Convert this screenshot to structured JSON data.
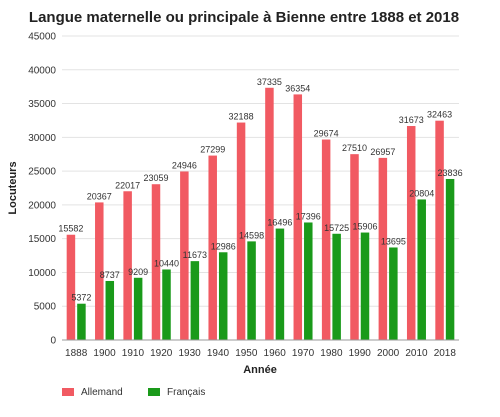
{
  "chart_data": {
    "type": "bar",
    "title": "Langue maternelle ou principale à Bienne entre 1888 et 2018",
    "xlabel": "Année",
    "ylabel": "Locuteurs",
    "ylim": [
      0,
      45000
    ],
    "yticks": [
      0,
      5000,
      10000,
      15000,
      20000,
      25000,
      30000,
      35000,
      40000,
      45000
    ],
    "grid": true,
    "legend": "bottom-left",
    "categories": [
      "1888",
      "1900",
      "1910",
      "1920",
      "1930",
      "1940",
      "1950",
      "1960",
      "1970",
      "1980",
      "1990",
      "2000",
      "2010",
      "2018"
    ],
    "series": [
      {
        "name": "Allemand",
        "color": "#f15a62",
        "values": [
          15582,
          20367,
          22017,
          23059,
          24946,
          27299,
          32188,
          37335,
          36354,
          29674,
          27510,
          26957,
          31673,
          32463
        ]
      },
      {
        "name": "Français",
        "color": "#1a9a1a",
        "values": [
          5372,
          8737,
          9209,
          10440,
          11673,
          12986,
          14598,
          16496,
          17396,
          15725,
          15906,
          13695,
          20804,
          23836
        ]
      }
    ]
  }
}
